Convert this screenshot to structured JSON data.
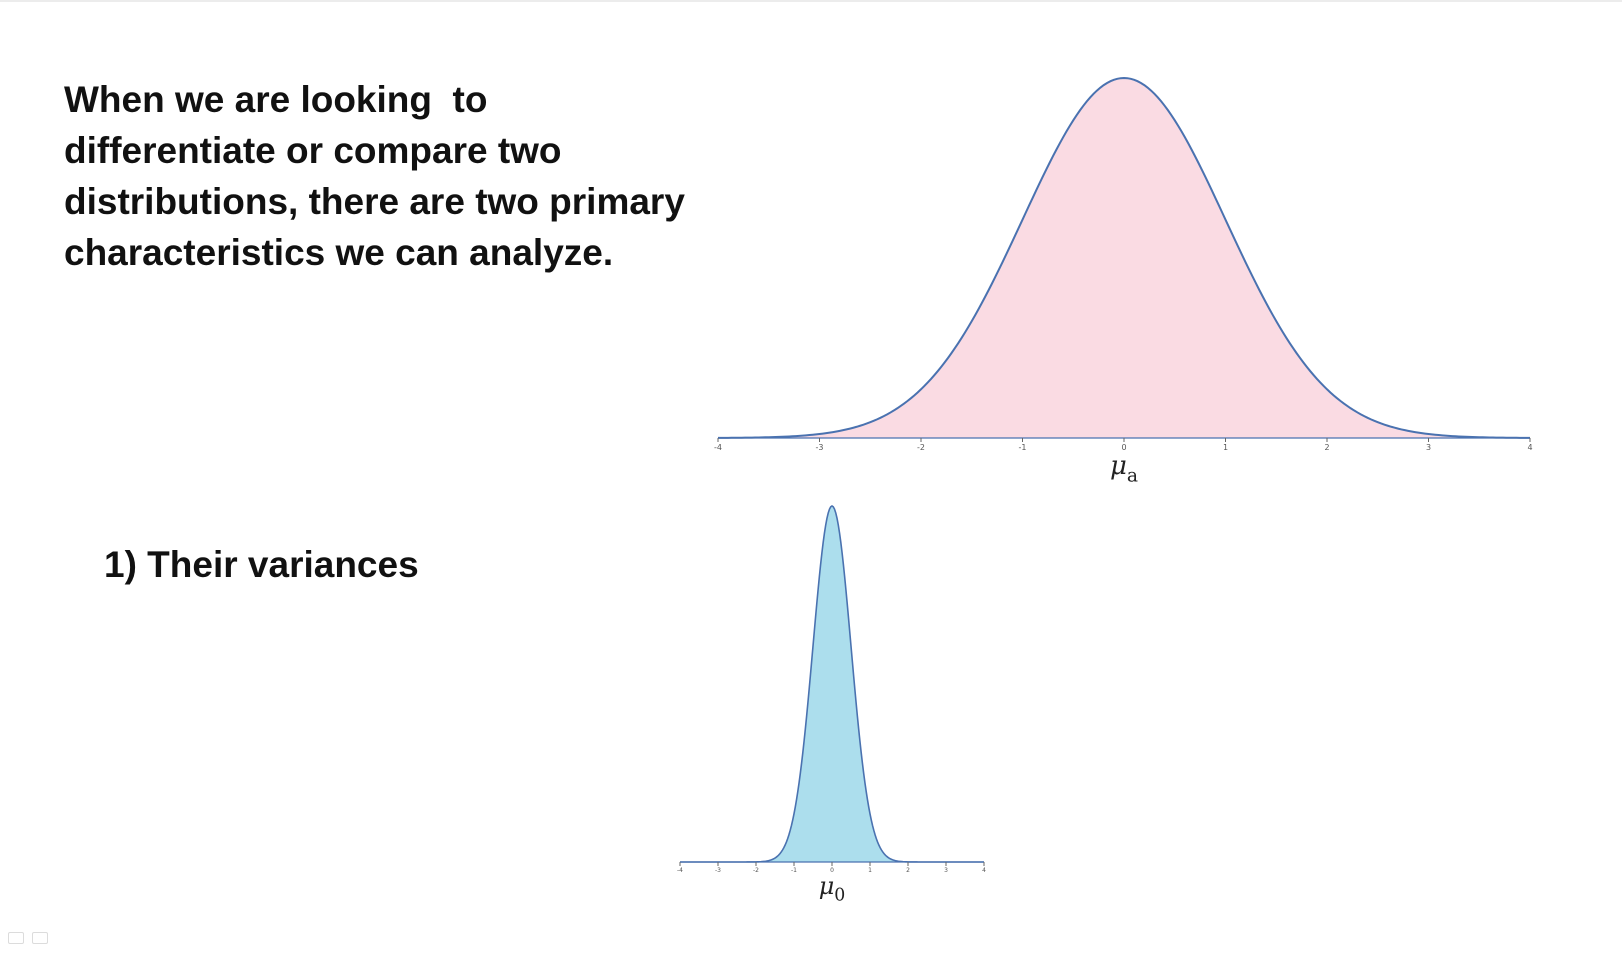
{
  "slide": {
    "intro_lines": [
      "When we are looking  to",
      "differentiate or compare two",
      "distributions, there are two primary",
      "characteristics we can analyze."
    ],
    "point_1": "1) Their variances"
  },
  "chart_data": [
    {
      "type": "area",
      "curve": "normal",
      "mean": 0,
      "sd": 1,
      "xlim": [
        -4,
        4
      ],
      "ticks": [
        "-4",
        "-3",
        "-2",
        "-1",
        "0",
        "1",
        "2",
        "3",
        "4"
      ],
      "mean_label": {
        "symbol": "μ",
        "subscript": "a"
      },
      "fill_color": "#fadbe3",
      "line_color": "#4a72b0"
    },
    {
      "type": "area",
      "curve": "normal",
      "mean": 0,
      "sd": 0.5,
      "xlim": [
        -4,
        4
      ],
      "ticks": [
        "-4",
        "-3",
        "-2",
        "-1",
        "0",
        "1",
        "2",
        "3",
        "4"
      ],
      "mean_label": {
        "symbol": "μ",
        "subscript": "0"
      },
      "fill_color": "#acdeed",
      "line_color": "#4a72b0"
    }
  ],
  "colors": {
    "text": "#111111",
    "axis": "#4a72b0"
  }
}
